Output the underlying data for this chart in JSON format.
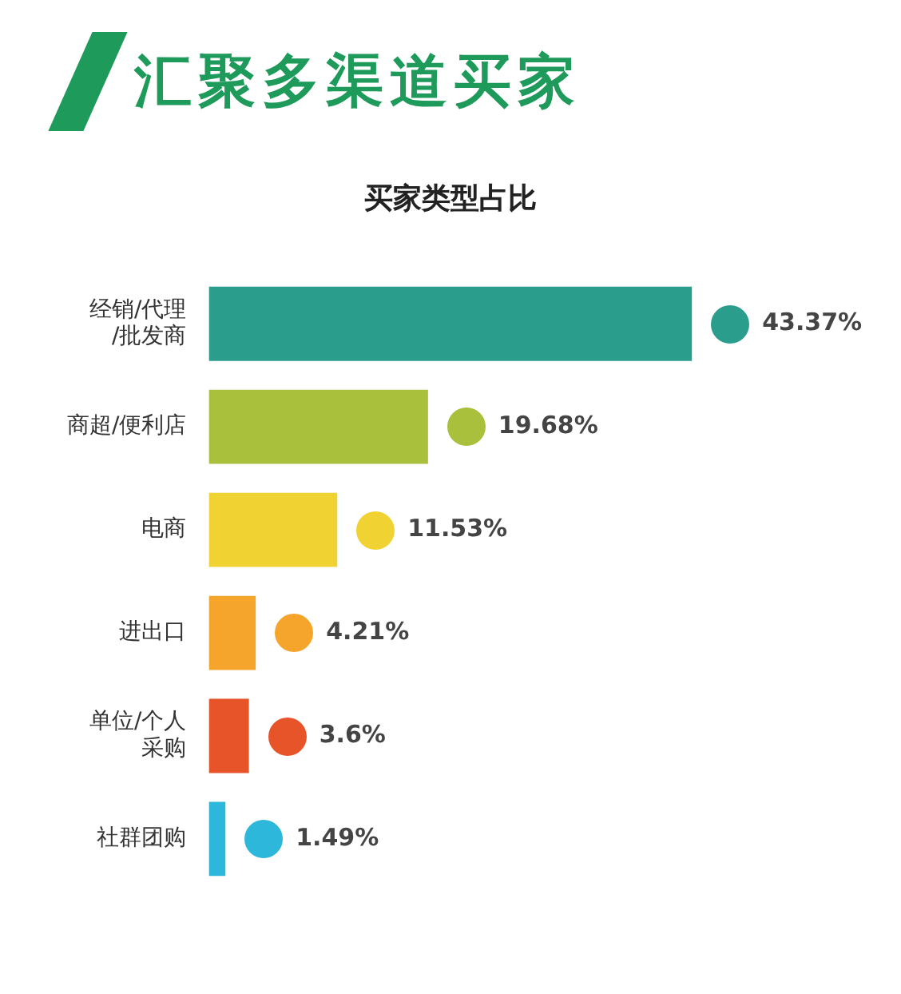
{
  "chart_data": {
    "type": "bar",
    "orientation": "horizontal",
    "title": "汇聚多渠道买家",
    "subtitle": "买家类型占比",
    "categories": [
      "经销/代理/批发商",
      "商超/便利店",
      "电商",
      "进出口",
      "单位/个人采购",
      "社群团购"
    ],
    "values": [
      43.37,
      19.68,
      11.53,
      4.21,
      3.6,
      1.49
    ],
    "value_labels": [
      "43.37%",
      "19.68%",
      "11.53%",
      "4.21%",
      "3.6%",
      "1.49%"
    ],
    "colors": [
      "#2a9d8c",
      "#a9c03c",
      "#f0d232",
      "#f5a52c",
      "#e8542a",
      "#2db7da"
    ],
    "tick_labels": "y",
    "grid": false,
    "legend": false
  }
}
